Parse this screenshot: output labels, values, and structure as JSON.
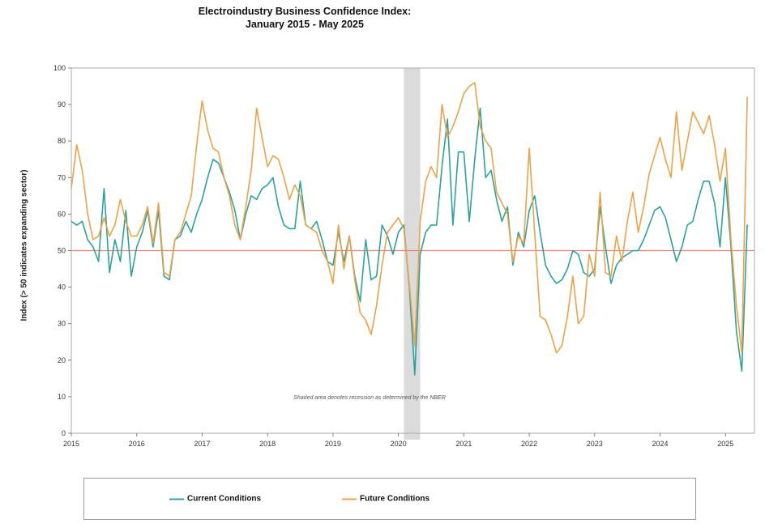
{
  "title": {
    "line1": "Electroindustry Business Confidence Index:",
    "line2": "January 2015 - May 2025"
  },
  "annotation": "Shaded area denotes recession as determined by the NBER",
  "chart_data": {
    "type": "line",
    "title": "Electroindustry Business Confidence Index: January 2015 - May 2025",
    "x_unit": "month",
    "x_start": "2015-01",
    "x_end": "2025-05",
    "x_tick_labels": [
      "2015",
      "2016",
      "2017",
      "2018",
      "2019",
      "2020",
      "2021",
      "2022",
      "2023",
      "2024",
      "2025"
    ],
    "y_label": "Index (> 50 indicates expanding sector)",
    "ylim": [
      0,
      100
    ],
    "y_ticks": [
      0,
      10,
      20,
      30,
      40,
      50,
      60,
      70,
      80,
      90,
      100
    ],
    "grid": false,
    "legend_position": "bottom",
    "reference_line": {
      "value": 50,
      "color": "#E5807A"
    },
    "recession_band": {
      "start": "2020-02",
      "end": "2020-05",
      "color": "#DBDBDB"
    },
    "series": [
      {
        "name": "Current Conditions",
        "color": "#2AA3A0",
        "values": [
          58,
          57,
          58,
          53,
          51,
          47,
          67,
          44,
          53,
          47,
          61,
          43,
          51,
          55,
          61,
          51,
          61,
          43,
          42,
          53,
          54,
          58,
          55,
          60,
          64,
          70,
          75,
          74,
          70,
          66,
          61,
          53,
          60,
          65,
          64,
          67,
          68,
          70,
          62,
          57,
          56,
          56,
          69,
          57,
          56,
          58,
          53,
          47,
          46,
          55,
          47,
          54,
          43,
          36,
          53,
          42,
          43,
          57,
          54,
          49,
          55,
          57,
          40,
          16,
          49,
          55,
          57,
          57,
          73,
          86,
          57,
          77,
          77,
          58,
          75,
          89,
          70,
          72,
          64,
          58,
          62,
          46,
          55,
          51,
          61,
          65,
          55,
          46,
          43,
          41,
          42,
          45,
          50,
          49,
          44,
          43,
          45,
          62,
          51,
          41,
          46,
          48,
          49,
          50,
          50,
          53,
          57,
          61,
          62,
          59,
          53,
          47,
          51,
          57,
          58,
          64,
          69,
          69,
          63,
          51,
          70,
          51,
          28,
          17,
          57
        ]
      },
      {
        "name": "Future Conditions",
        "color": "#F0A143",
        "values": [
          67,
          79,
          72,
          60,
          53,
          54,
          59,
          54,
          57,
          64,
          58,
          54,
          54,
          57,
          62,
          52,
          63,
          44,
          43,
          53,
          55,
          60,
          65,
          79,
          91,
          83,
          78,
          77,
          70,
          65,
          57,
          53,
          62,
          72,
          89,
          81,
          73,
          76,
          75,
          70,
          64,
          68,
          65,
          57,
          56,
          55,
          50,
          47,
          41,
          57,
          45,
          54,
          42,
          33,
          31,
          27,
          35,
          46,
          55,
          57,
          59,
          56,
          41,
          24,
          58,
          69,
          73,
          70,
          90,
          81,
          84,
          88,
          93,
          95,
          96,
          84,
          80,
          78,
          66,
          63,
          60,
          47,
          54,
          52,
          78,
          55,
          32,
          31,
          27,
          22,
          24,
          32,
          43,
          30,
          32,
          49,
          43,
          66,
          44,
          43,
          54,
          47,
          58,
          66,
          55,
          62,
          71,
          76,
          81,
          75,
          70,
          88,
          72,
          80,
          88,
          85,
          82,
          87,
          79,
          69,
          78,
          53,
          35,
          22,
          92
        ]
      }
    ]
  }
}
